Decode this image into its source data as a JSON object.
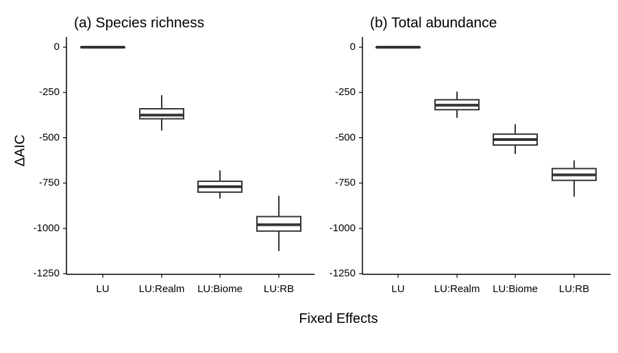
{
  "chart_data": [
    {
      "type": "box",
      "title": "(a) Species richness",
      "xlabel": "Fixed Effects",
      "ylabel": "ΔAIC",
      "ylim": [
        -1250,
        50
      ],
      "yticks": [
        0,
        -250,
        -500,
        -750,
        -1000,
        -1250
      ],
      "ytick_labels": [
        "0",
        "-250",
        "-500",
        "-750",
        "-1000",
        "-1250"
      ],
      "categories": [
        "LU",
        "LU:Realm",
        "LU:Biome",
        "LU:RB"
      ],
      "boxes": [
        {
          "min": 0,
          "q1": 0,
          "median": 0,
          "q3": 0,
          "max": 0
        },
        {
          "min": -460,
          "q1": -395,
          "median": -375,
          "q3": -340,
          "max": -265
        },
        {
          "min": -835,
          "q1": -800,
          "median": -770,
          "q3": -740,
          "max": -680
        },
        {
          "min": -1125,
          "q1": -1015,
          "median": -980,
          "q3": -935,
          "max": -820
        }
      ]
    },
    {
      "type": "box",
      "title": "(b) Total abundance",
      "xlabel": "Fixed Effects",
      "ylabel": "",
      "ylim": [
        -1250,
        50
      ],
      "yticks": [
        0,
        -250,
        -500,
        -750,
        -1000,
        -1250
      ],
      "ytick_labels": [
        "0",
        "-250",
        "-500",
        "-750",
        "-1000",
        "-1250"
      ],
      "categories": [
        "LU",
        "LU:Realm",
        "LU:Biome",
        "LU:RB"
      ],
      "boxes": [
        {
          "min": 0,
          "q1": 0,
          "median": 0,
          "q3": 0,
          "max": 0
        },
        {
          "min": -390,
          "q1": -345,
          "median": -320,
          "q3": -290,
          "max": -245
        },
        {
          "min": -590,
          "q1": -540,
          "median": -510,
          "q3": -480,
          "max": -425
        },
        {
          "min": -825,
          "q1": -735,
          "median": -705,
          "q3": -670,
          "max": -625
        }
      ]
    }
  ],
  "figure": {
    "xlabel": "Fixed Effects",
    "ylabel": "ΔAIC",
    "color_line": "#333333",
    "color_axis": "#000000",
    "color_box_fill": "#ffffff"
  }
}
